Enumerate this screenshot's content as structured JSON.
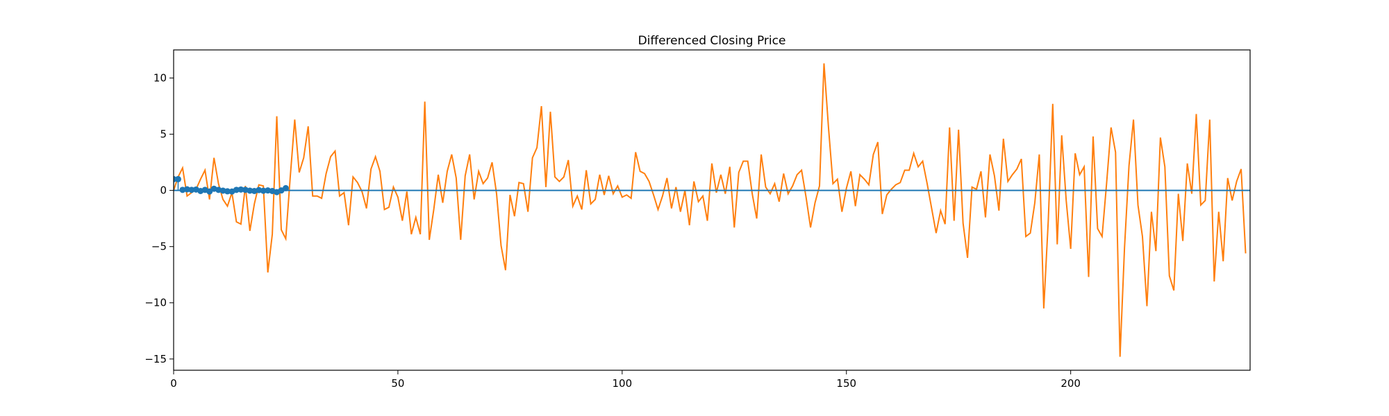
{
  "chart_data": {
    "type": "line",
    "title": "Differenced Closing Price",
    "xlabel": "",
    "ylabel": "",
    "xlim": [
      0,
      240
    ],
    "ylim": [
      -16,
      12.5
    ],
    "x_ticks": [
      0,
      50,
      100,
      150,
      200
    ],
    "y_ticks": [
      -15,
      -10,
      -5,
      0,
      5,
      10
    ],
    "grid": false,
    "legend": "none",
    "series": [
      {
        "kind": "line",
        "color": "#ff7f0e",
        "x_start": 0,
        "x_step": 1,
        "values": [
          0.0,
          1.2,
          2.0,
          -0.5,
          -0.2,
          0.1,
          1.0,
          1.8,
          -0.8,
          2.9,
          0.6,
          -0.8,
          -1.4,
          -0.2,
          -2.8,
          -3.0,
          0.4,
          -3.6,
          -1.2,
          0.5,
          0.4,
          -7.3,
          -3.9,
          6.6,
          -3.5,
          -4.3,
          1.2,
          6.3,
          1.6,
          2.9,
          5.7,
          -0.5,
          -0.5,
          -0.7,
          1.5,
          3.0,
          3.5,
          -0.5,
          -0.2,
          -3.1,
          1.2,
          0.7,
          -0.1,
          -1.6,
          1.9,
          3.0,
          1.7,
          -1.7,
          -1.5,
          0.3,
          -0.6,
          -2.7,
          -0.1,
          -3.9,
          -2.4,
          -3.9,
          7.9,
          -4.4,
          -1.7,
          1.4,
          -1.1,
          1.7,
          3.2,
          1.1,
          -4.4,
          1.3,
          3.2,
          -0.8,
          1.7,
          0.6,
          1.1,
          2.5,
          -0.3,
          -4.9,
          -7.1,
          -0.4,
          -2.3,
          0.7,
          0.6,
          -1.9,
          2.9,
          3.8,
          7.5,
          0.3,
          7.0,
          1.2,
          0.8,
          1.2,
          2.7,
          -1.4,
          -0.5,
          -1.7,
          1.8,
          -1.2,
          -0.8,
          1.4,
          -0.4,
          1.3,
          -0.3,
          0.4,
          -0.6,
          -0.4,
          -0.7,
          3.4,
          1.7,
          1.5,
          0.8,
          -0.4,
          -1.7,
          -0.5,
          1.1,
          -1.6,
          0.3,
          -1.9,
          0.0,
          -3.1,
          0.8,
          -1.0,
          -0.5,
          -2.7,
          2.4,
          -0.2,
          1.4,
          -0.3,
          2.1,
          -3.3,
          1.6,
          2.6,
          2.6,
          -0.3,
          -2.5,
          3.2,
          0.3,
          -0.3,
          0.6,
          -1.0,
          1.5,
          -0.3,
          0.4,
          1.4,
          1.8,
          -0.6,
          -3.3,
          -1.1,
          0.4,
          11.3,
          5.6,
          0.6,
          1.0,
          -1.9,
          0.2,
          1.7,
          -1.4,
          1.4,
          1.0,
          0.5,
          3.2,
          4.3,
          -2.1,
          -0.4,
          0.1,
          0.5,
          0.7,
          1.8,
          1.8,
          3.3,
          2.1,
          2.6,
          0.6,
          -1.6,
          -3.8,
          -1.8,
          -3.0,
          5.6,
          -2.7,
          5.4,
          -2.9,
          -6.0,
          0.3,
          0.1,
          1.7,
          -2.4,
          3.2,
          1.3,
          -1.8,
          4.6,
          0.8,
          1.4,
          1.9,
          2.8,
          -4.1,
          -3.8,
          -1.1,
          3.2,
          -10.5,
          -2.7,
          7.7,
          -4.8,
          4.9,
          -0.9,
          -5.2,
          3.3,
          1.4,
          2.1,
          -7.7,
          4.8,
          -3.4,
          -4.1,
          0.6,
          5.6,
          3.4,
          -14.8,
          -5.1,
          2.2,
          6.3,
          -1.3,
          -4.1,
          -10.3,
          -1.9,
          -5.4,
          4.7,
          2.1,
          -7.6,
          -8.9,
          -0.3,
          -4.5,
          2.4,
          -0.3,
          6.8,
          -1.3,
          -0.9,
          6.3,
          -8.1,
          -1.9,
          -6.3,
          1.1,
          -0.9,
          0.8,
          1.9,
          -5.6
        ]
      },
      {
        "kind": "hline",
        "color": "#1f77b4",
        "y": 0
      },
      {
        "kind": "stem",
        "color": "#1f77b4",
        "x_start": 0,
        "x_step": 1,
        "values": [
          1.0,
          1.0,
          0.05,
          0.1,
          0.05,
          0.08,
          -0.05,
          0.05,
          -0.1,
          0.15,
          0.05,
          -0.02,
          -0.08,
          -0.1,
          0.05,
          0.08,
          0.05,
          -0.02,
          -0.05,
          0.03,
          -0.03,
          0.0,
          -0.05,
          -0.15,
          0.0,
          0.2
        ]
      }
    ]
  }
}
